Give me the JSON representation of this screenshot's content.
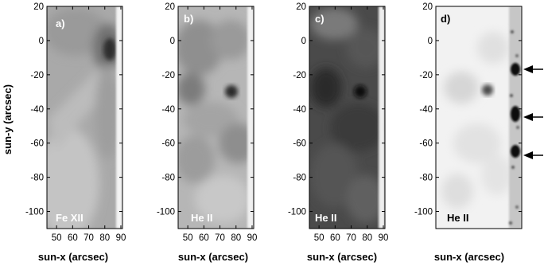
{
  "figure": {
    "ylabel": "sun-y (arcsec)",
    "xlabel": "sun-x (arcsec)",
    "y_ticks": [
      20,
      0,
      -20,
      -40,
      -60,
      -80,
      -100
    ],
    "x_ticks": [
      50,
      60,
      70,
      80,
      90
    ],
    "panels": [
      {
        "letter": "a)",
        "ion": "Fe XII",
        "style": "fe12"
      },
      {
        "letter": "b)",
        "ion": "He II",
        "style": "he2"
      },
      {
        "letter": "c)",
        "ion": "He II",
        "style": "he2dark"
      },
      {
        "letter": "d)",
        "ion": "He II",
        "style": "he2diff"
      }
    ],
    "arrows_count": 3
  }
}
